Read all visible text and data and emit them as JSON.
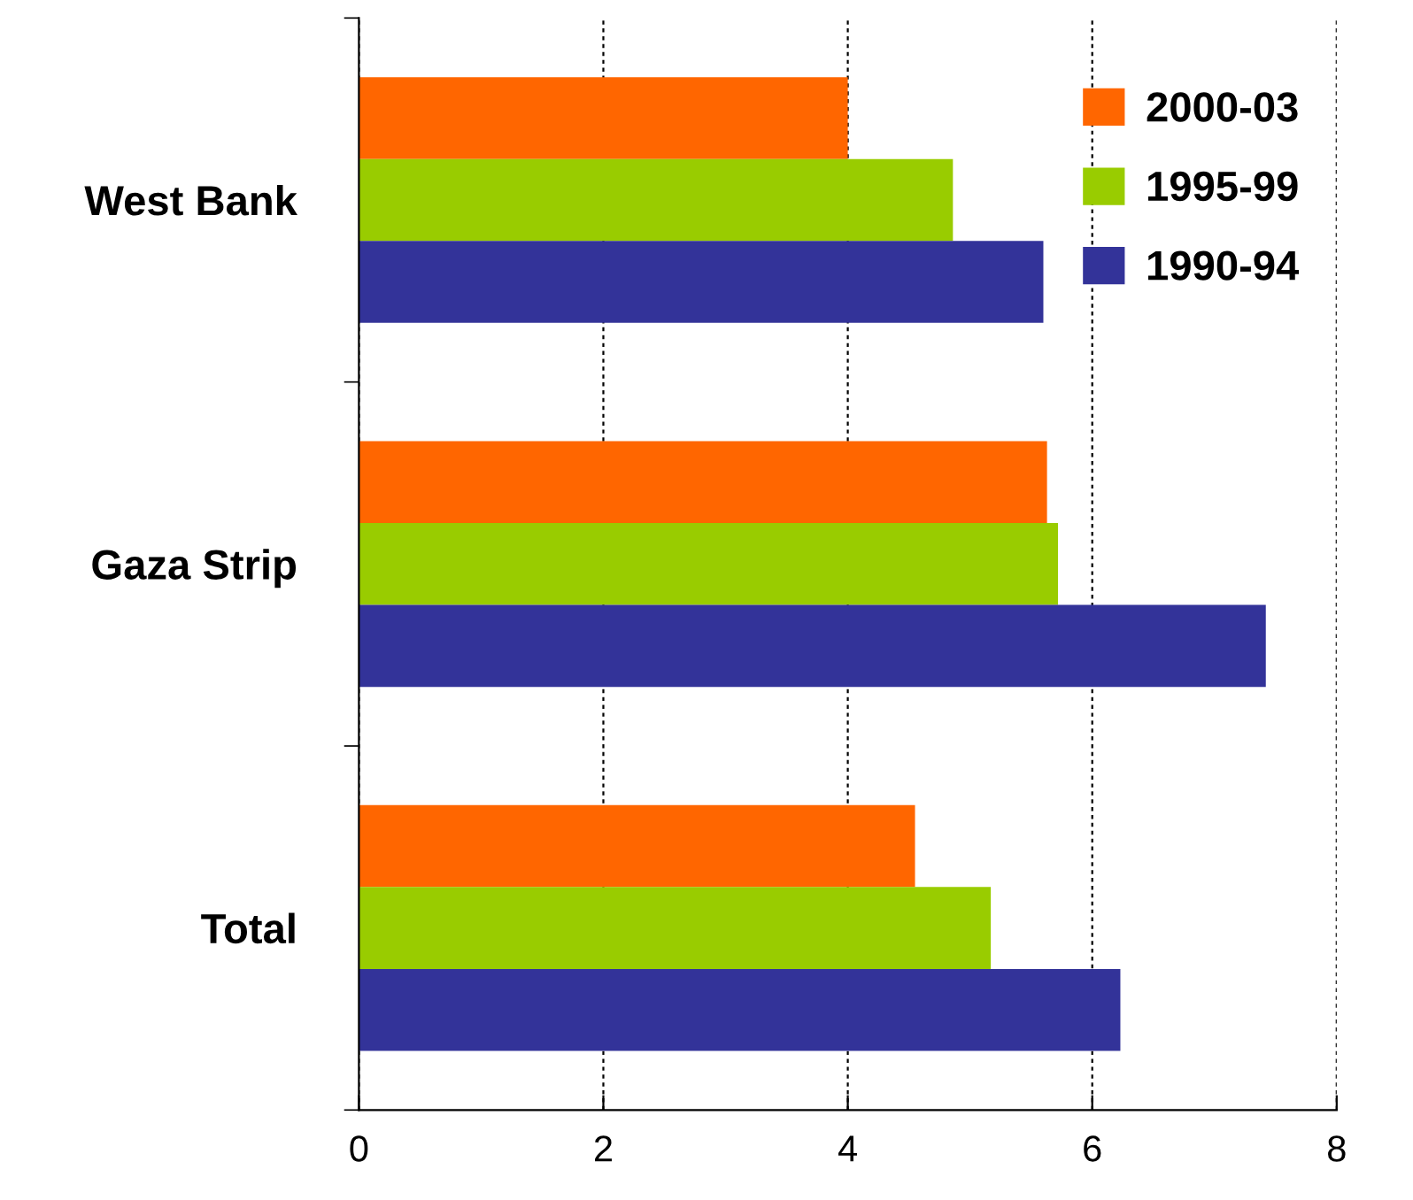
{
  "chart_data": {
    "type": "bar",
    "orientation": "horizontal",
    "categories": [
      "West Bank",
      "Gaza Strip",
      "Total"
    ],
    "series": [
      {
        "name": "2000-03",
        "color": "#ff6600",
        "values": [
          4.0,
          5.63,
          4.55
        ]
      },
      {
        "name": "1995-99",
        "color": "#99cc00",
        "values": [
          4.86,
          5.72,
          5.17
        ]
      },
      {
        "name": "1990-94",
        "color": "#333399",
        "values": [
          5.6,
          7.42,
          6.23
        ]
      }
    ],
    "xlim": [
      0,
      8
    ],
    "xticks": [
      0,
      2,
      4,
      6,
      8
    ],
    "grid": "x",
    "legend": "top right"
  }
}
